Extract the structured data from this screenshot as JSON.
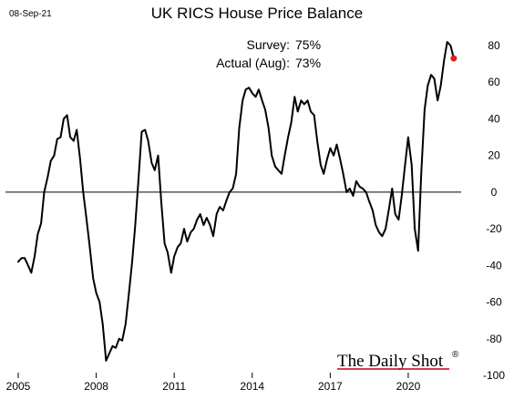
{
  "header": {
    "date": "08-Sep-21",
    "title": "UK RICS House Price Balance"
  },
  "annotations": {
    "survey_label": "Survey:",
    "survey_value": "75%",
    "actual_label": "Actual (Aug):",
    "actual_value": "73%"
  },
  "brand": {
    "name": "The Daily Shot",
    "mark": "®"
  },
  "colors": {
    "line": "#000000",
    "marker": "#e0201b",
    "zero_line": "#000000",
    "brand_underline": "#c0001a"
  },
  "chart_data": {
    "type": "line",
    "title": "UK RICS House Price Balance",
    "xlabel": "",
    "ylabel": "",
    "xlim": [
      2005.0,
      2022.0
    ],
    "ylim": [
      -100,
      90
    ],
    "x_ticks": [
      2005,
      2008,
      2011,
      2014,
      2017,
      2020
    ],
    "x_tick_labels": [
      "2005",
      "2008",
      "2011",
      "2014",
      "2017",
      "2020"
    ],
    "y_ticks": [
      80,
      60,
      40,
      20,
      0,
      -20,
      -40,
      -60,
      -80,
      -100
    ],
    "y_tick_labels": [
      "80",
      "60",
      "40",
      "20",
      "0",
      "-20",
      "-40",
      "-60",
      "-80",
      "-100"
    ],
    "grid": false,
    "zero_line": true,
    "y_axis_side": "right",
    "series": [
      {
        "values": [
          [
            2005.0,
            -38
          ],
          [
            2005.13,
            -36
          ],
          [
            2005.25,
            -36
          ],
          [
            2005.38,
            -40
          ],
          [
            2005.5,
            -44
          ],
          [
            2005.63,
            -35
          ],
          [
            2005.75,
            -23
          ],
          [
            2005.88,
            -17
          ],
          [
            2006.0,
            0
          ],
          [
            2006.13,
            8
          ],
          [
            2006.25,
            17
          ],
          [
            2006.38,
            20
          ],
          [
            2006.5,
            29
          ],
          [
            2006.63,
            30
          ],
          [
            2006.75,
            40
          ],
          [
            2006.88,
            42
          ],
          [
            2007.0,
            30
          ],
          [
            2007.13,
            28
          ],
          [
            2007.25,
            34
          ],
          [
            2007.38,
            18
          ],
          [
            2007.5,
            0
          ],
          [
            2007.63,
            -15
          ],
          [
            2007.75,
            -30
          ],
          [
            2007.88,
            -47
          ],
          [
            2008.0,
            -55
          ],
          [
            2008.13,
            -60
          ],
          [
            2008.25,
            -72
          ],
          [
            2008.38,
            -92
          ],
          [
            2008.5,
            -88
          ],
          [
            2008.63,
            -84
          ],
          [
            2008.75,
            -85
          ],
          [
            2008.88,
            -80
          ],
          [
            2009.0,
            -81
          ],
          [
            2009.13,
            -72
          ],
          [
            2009.25,
            -56
          ],
          [
            2009.38,
            -38
          ],
          [
            2009.5,
            -18
          ],
          [
            2009.63,
            8
          ],
          [
            2009.75,
            33
          ],
          [
            2009.88,
            34
          ],
          [
            2010.0,
            28
          ],
          [
            2010.13,
            16
          ],
          [
            2010.25,
            12
          ],
          [
            2010.38,
            20
          ],
          [
            2010.5,
            -5
          ],
          [
            2010.63,
            -28
          ],
          [
            2010.75,
            -33
          ],
          [
            2010.88,
            -44
          ],
          [
            2011.0,
            -35
          ],
          [
            2011.13,
            -30
          ],
          [
            2011.25,
            -28
          ],
          [
            2011.38,
            -20
          ],
          [
            2011.5,
            -27
          ],
          [
            2011.63,
            -22
          ],
          [
            2011.75,
            -20
          ],
          [
            2011.88,
            -15
          ],
          [
            2012.0,
            -12
          ],
          [
            2012.13,
            -18
          ],
          [
            2012.25,
            -14
          ],
          [
            2012.38,
            -18
          ],
          [
            2012.5,
            -24
          ],
          [
            2012.63,
            -12
          ],
          [
            2012.75,
            -8
          ],
          [
            2012.88,
            -10
          ],
          [
            2013.0,
            -5
          ],
          [
            2013.13,
            0
          ],
          [
            2013.25,
            2
          ],
          [
            2013.38,
            10
          ],
          [
            2013.5,
            35
          ],
          [
            2013.63,
            50
          ],
          [
            2013.75,
            56
          ],
          [
            2013.88,
            57
          ],
          [
            2014.0,
            54
          ],
          [
            2014.13,
            52
          ],
          [
            2014.25,
            56
          ],
          [
            2014.38,
            50
          ],
          [
            2014.5,
            45
          ],
          [
            2014.63,
            35
          ],
          [
            2014.75,
            20
          ],
          [
            2014.88,
            14
          ],
          [
            2015.0,
            12
          ],
          [
            2015.13,
            10
          ],
          [
            2015.25,
            20
          ],
          [
            2015.38,
            30
          ],
          [
            2015.5,
            38
          ],
          [
            2015.63,
            52
          ],
          [
            2015.75,
            44
          ],
          [
            2015.88,
            50
          ],
          [
            2016.0,
            48
          ],
          [
            2016.13,
            50
          ],
          [
            2016.25,
            44
          ],
          [
            2016.38,
            42
          ],
          [
            2016.5,
            28
          ],
          [
            2016.63,
            15
          ],
          [
            2016.75,
            10
          ],
          [
            2016.88,
            18
          ],
          [
            2017.0,
            24
          ],
          [
            2017.13,
            20
          ],
          [
            2017.25,
            26
          ],
          [
            2017.38,
            18
          ],
          [
            2017.5,
            10
          ],
          [
            2017.63,
            0
          ],
          [
            2017.75,
            2
          ],
          [
            2017.88,
            -2
          ],
          [
            2018.0,
            6
          ],
          [
            2018.13,
            3
          ],
          [
            2018.25,
            2
          ],
          [
            2018.38,
            0
          ],
          [
            2018.5,
            -5
          ],
          [
            2018.63,
            -10
          ],
          [
            2018.75,
            -18
          ],
          [
            2018.88,
            -22
          ],
          [
            2019.0,
            -24
          ],
          [
            2019.13,
            -20
          ],
          [
            2019.25,
            -10
          ],
          [
            2019.38,
            2
          ],
          [
            2019.5,
            -12
          ],
          [
            2019.63,
            -15
          ],
          [
            2019.75,
            -2
          ],
          [
            2019.88,
            15
          ],
          [
            2020.0,
            30
          ],
          [
            2020.13,
            15
          ],
          [
            2020.25,
            -20
          ],
          [
            2020.38,
            -32
          ],
          [
            2020.5,
            10
          ],
          [
            2020.63,
            45
          ],
          [
            2020.75,
            58
          ],
          [
            2020.88,
            64
          ],
          [
            2021.0,
            62
          ],
          [
            2021.13,
            50
          ],
          [
            2021.25,
            58
          ],
          [
            2021.38,
            72
          ],
          [
            2021.5,
            82
          ],
          [
            2021.63,
            80
          ],
          [
            2021.75,
            73
          ]
        ],
        "marker": {
          "x": 2021.75,
          "y": 73
        }
      }
    ]
  }
}
